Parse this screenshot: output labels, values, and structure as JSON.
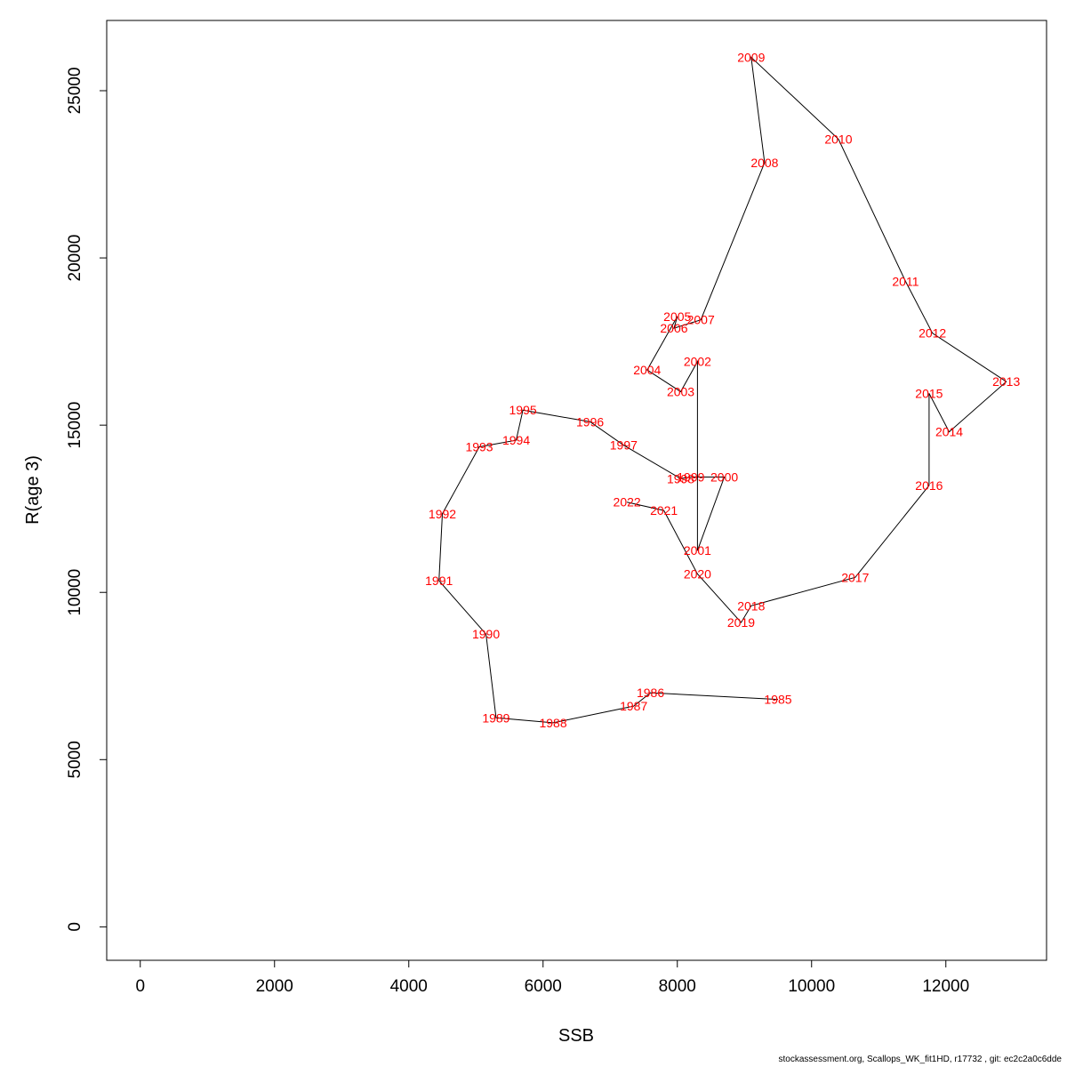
{
  "chart_data": {
    "type": "line",
    "title": "",
    "xlabel": "SSB",
    "ylabel": "R(age 3)",
    "xlim": [
      -500,
      13500
    ],
    "ylim": [
      -1000,
      27100
    ],
    "x_ticks": [
      0,
      2000,
      4000,
      6000,
      8000,
      10000,
      12000
    ],
    "y_ticks": [
      0,
      5000,
      10000,
      15000,
      20000,
      25000
    ],
    "grid": false,
    "line_color": "#000000",
    "label_color": "#ff0000",
    "points": [
      {
        "label": "1985",
        "x": 9500,
        "y": 6800
      },
      {
        "label": "1986",
        "x": 7600,
        "y": 7000
      },
      {
        "label": "1987",
        "x": 7350,
        "y": 6600
      },
      {
        "label": "1988",
        "x": 6150,
        "y": 6100
      },
      {
        "label": "1989",
        "x": 5300,
        "y": 6250
      },
      {
        "label": "1990",
        "x": 5150,
        "y": 8750
      },
      {
        "label": "1991",
        "x": 4450,
        "y": 10350
      },
      {
        "label": "1992",
        "x": 4500,
        "y": 12350
      },
      {
        "label": "1993",
        "x": 5050,
        "y": 14350
      },
      {
        "label": "1994",
        "x": 5600,
        "y": 14550
      },
      {
        "label": "1995",
        "x": 5700,
        "y": 15450
      },
      {
        "label": "1996",
        "x": 6700,
        "y": 15100
      },
      {
        "label": "1997",
        "x": 7200,
        "y": 14400
      },
      {
        "label": "1998",
        "x": 8050,
        "y": 13400
      },
      {
        "label": "1999",
        "x": 8200,
        "y": 13450
      },
      {
        "label": "2000",
        "x": 8700,
        "y": 13450
      },
      {
        "label": "2001",
        "x": 8300,
        "y": 11250
      },
      {
        "label": "2002",
        "x": 8300,
        "y": 16900
      },
      {
        "label": "2003",
        "x": 8050,
        "y": 16000
      },
      {
        "label": "2004",
        "x": 7550,
        "y": 16650
      },
      {
        "label": "2005",
        "x": 8000,
        "y": 18250
      },
      {
        "label": "2006",
        "x": 7950,
        "y": 17900
      },
      {
        "label": "2007",
        "x": 8350,
        "y": 18150
      },
      {
        "label": "2008",
        "x": 9300,
        "y": 22850
      },
      {
        "label": "2009",
        "x": 9100,
        "y": 26000
      },
      {
        "label": "2010",
        "x": 10400,
        "y": 23550
      },
      {
        "label": "2011",
        "x": 11400,
        "y": 19300
      },
      {
        "label": "2012",
        "x": 11800,
        "y": 17750
      },
      {
        "label": "2013",
        "x": 12900,
        "y": 16300
      },
      {
        "label": "2014",
        "x": 12050,
        "y": 14800
      },
      {
        "label": "2015",
        "x": 11750,
        "y": 15950
      },
      {
        "label": "2016",
        "x": 11750,
        "y": 13200
      },
      {
        "label": "2017",
        "x": 10650,
        "y": 10450
      },
      {
        "label": "2018",
        "x": 9100,
        "y": 9600
      },
      {
        "label": "2019",
        "x": 8950,
        "y": 9100
      },
      {
        "label": "2020",
        "x": 8300,
        "y": 10550
      },
      {
        "label": "2021",
        "x": 7800,
        "y": 12450
      },
      {
        "label": "2022",
        "x": 7250,
        "y": 12700
      }
    ]
  },
  "footer_text": "stockassessment.org, Scallops_WK_fit1HD, r17732 , git: ec2c2a0c6dde"
}
